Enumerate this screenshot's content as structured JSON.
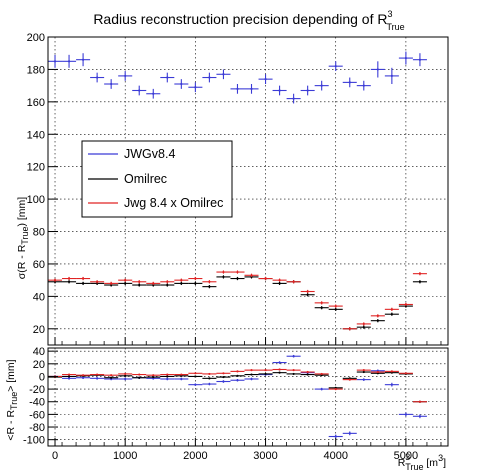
{
  "chart_data": [
    {
      "type": "scatter",
      "panel": "top",
      "title": {
        "main": "Radius reconstruction precision depending of R",
        "sup": "3",
        "sub": "True"
      },
      "ylabel": {
        "main": "σ(R - R",
        "sub": "True",
        "tail": ") [mm]"
      },
      "xlim": [
        -100,
        5600
      ],
      "ylim": [
        10,
        200
      ],
      "yticks": [
        20,
        40,
        60,
        80,
        100,
        120,
        140,
        160,
        180,
        200
      ],
      "grid": true,
      "legend_position": "left-middle",
      "x_halfwidth": 100,
      "x": [
        0,
        200,
        400,
        600,
        800,
        1000,
        1200,
        1400,
        1600,
        1800,
        2000,
        2200,
        2400,
        2600,
        2800,
        3000,
        3200,
        3400,
        3600,
        3800,
        4000,
        4200,
        4400,
        4600,
        4800,
        5000,
        5200
      ],
      "series": [
        {
          "name": "JWGv8.4",
          "color": "#3b3bd6",
          "y": [
            185,
            185,
            186,
            175,
            171,
            176,
            167,
            165,
            175,
            171,
            169,
            175,
            177,
            168,
            168,
            174,
            167,
            162,
            167,
            170,
            182,
            172,
            170,
            180,
            176,
            187,
            186
          ],
          "yerr": [
            4,
            4,
            4,
            3,
            3,
            3,
            3,
            3,
            3,
            3,
            3,
            3,
            3,
            3,
            3,
            3,
            3,
            3,
            3,
            3,
            3,
            3,
            3,
            5,
            5,
            4,
            4
          ]
        },
        {
          "name": "Omilrec",
          "color": "#000000",
          "y": [
            49,
            49,
            48,
            48,
            47,
            48,
            47,
            47,
            47,
            48,
            48,
            46,
            52,
            51,
            52,
            51,
            48,
            49,
            41,
            33,
            32,
            20,
            21,
            25,
            29,
            34,
            49
          ],
          "yerr": [
            1,
            1,
            1,
            1,
            1,
            1,
            1,
            1,
            1,
            1,
            1,
            1,
            1,
            1,
            1,
            1,
            1,
            1,
            1,
            1,
            1,
            1,
            1,
            1,
            1,
            1,
            1
          ]
        },
        {
          "name": "Jwg 8.4 x Omilrec",
          "color": "#e02424",
          "y": [
            50,
            51,
            51,
            49,
            48,
            50,
            49,
            48,
            49,
            50,
            51,
            49,
            55,
            55,
            53,
            51,
            50,
            49,
            43,
            36,
            34,
            20,
            23,
            28,
            32,
            35,
            54
          ],
          "yerr": [
            1,
            1,
            1,
            1,
            1,
            1,
            1,
            1,
            1,
            1,
            1,
            1,
            1,
            1,
            1,
            1,
            1,
            1,
            1,
            1,
            1,
            1,
            1,
            1,
            1,
            1,
            1
          ]
        }
      ]
    },
    {
      "type": "scatter",
      "panel": "bottom",
      "ylabel": {
        "main": "<R - R",
        "sub": "True",
        "tail": "> [mm]"
      },
      "xlabel": {
        "main": "R",
        "sup": "3",
        "sub": "True",
        "tail": " [m",
        "tailsup": "3",
        "close": "]"
      },
      "xlim": [
        -100,
        5600
      ],
      "ylim": [
        -110,
        45
      ],
      "yticks": [
        -100,
        -80,
        -60,
        -40,
        -20,
        0,
        20,
        40
      ],
      "xticks": [
        0,
        1000,
        2000,
        3000,
        4000,
        5000
      ],
      "grid": true,
      "x_halfwidth": 100,
      "x": [
        0,
        200,
        400,
        600,
        800,
        1000,
        1200,
        1400,
        1600,
        1800,
        2000,
        2200,
        2400,
        2600,
        2800,
        3000,
        3200,
        3400,
        3600,
        3800,
        4000,
        4200,
        4400,
        4600,
        4800,
        5000,
        5200
      ],
      "series": [
        {
          "name": "JWGv8.4",
          "color": "#3b3bd6",
          "y": [
            0,
            -3,
            -2,
            -3,
            -4,
            -4,
            -2,
            -3,
            -4,
            -4,
            -13,
            -12,
            -8,
            -6,
            -4,
            3,
            22,
            32,
            6,
            -20,
            -95,
            -90,
            -5,
            9,
            -13,
            -60,
            -63
          ],
          "yerr": [
            2,
            2,
            2,
            2,
            2,
            2,
            2,
            2,
            2,
            2,
            2,
            2,
            2,
            2,
            2,
            2,
            2,
            2,
            2,
            2,
            3,
            3,
            2,
            2,
            3,
            3,
            3
          ]
        },
        {
          "name": "Omilrec",
          "color": "#000000",
          "y": [
            -1,
            0,
            1,
            2,
            -2,
            1,
            -2,
            -1,
            0,
            1,
            0,
            -3,
            -1,
            1,
            3,
            4,
            6,
            4,
            3,
            2,
            -18,
            -3,
            7,
            5,
            6,
            4,
            -40
          ],
          "yerr": [
            1,
            1,
            1,
            1,
            1,
            1,
            1,
            1,
            1,
            1,
            1,
            1,
            1,
            1,
            1,
            1,
            1,
            1,
            1,
            1,
            1,
            1,
            1,
            1,
            1,
            1,
            1
          ]
        },
        {
          "name": "Jwg 8.4 x Omilrec",
          "color": "#e02424",
          "y": [
            0,
            3,
            2,
            3,
            2,
            4,
            3,
            2,
            3,
            3,
            5,
            4,
            5,
            8,
            10,
            10,
            11,
            10,
            7,
            4,
            -20,
            -5,
            10,
            7,
            8,
            5,
            -40
          ],
          "yerr": [
            1,
            1,
            1,
            1,
            1,
            1,
            1,
            1,
            1,
            1,
            1,
            1,
            1,
            1,
            1,
            1,
            1,
            1,
            1,
            1,
            1,
            1,
            1,
            1,
            1,
            1,
            1
          ]
        }
      ]
    }
  ]
}
